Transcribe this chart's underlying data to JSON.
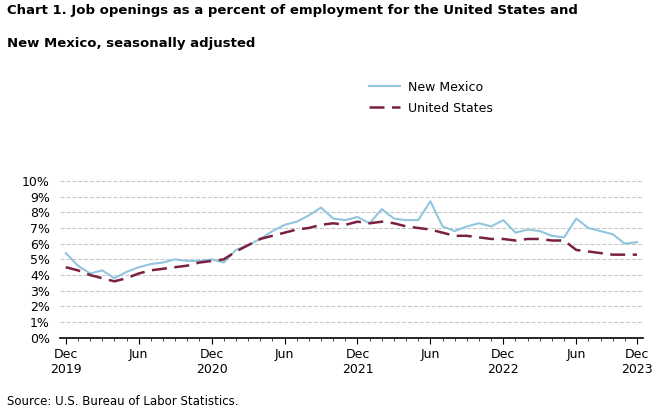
{
  "title_line1": "Chart 1. Job openings as a percent of employment for the United States and",
  "title_line2": "New Mexico, seasonally adjusted",
  "source": "Source: U.S. Bureau of Labor Statistics.",
  "nm_label": "New Mexico",
  "us_label": "United States",
  "nm_color": "#92C5DE",
  "us_color": "#7B2040",
  "nm_linewidth": 1.5,
  "us_linewidth": 1.8,
  "ylim": [
    0,
    0.105
  ],
  "yticks": [
    0.0,
    0.01,
    0.02,
    0.03,
    0.04,
    0.05,
    0.06,
    0.07,
    0.08,
    0.09,
    0.1
  ],
  "ytick_labels": [
    "0%",
    "1%",
    "2%",
    "3%",
    "4%",
    "5%",
    "6%",
    "7%",
    "8%",
    "9%",
    "10%"
  ],
  "background_color": "#ffffff",
  "new_mexico": [
    0.054,
    0.046,
    0.041,
    0.043,
    0.038,
    0.042,
    0.045,
    0.047,
    0.048,
    0.05,
    0.049,
    0.049,
    0.05,
    0.048,
    0.056,
    0.059,
    0.063,
    0.068,
    0.072,
    0.074,
    0.078,
    0.083,
    0.076,
    0.075,
    0.077,
    0.073,
    0.082,
    0.076,
    0.075,
    0.075,
    0.087,
    0.071,
    0.068,
    0.071,
    0.073,
    0.071,
    0.075,
    0.067,
    0.069,
    0.068,
    0.065,
    0.064,
    0.076,
    0.07,
    0.068,
    0.066,
    0.06,
    0.061
  ],
  "united_states": [
    0.045,
    0.043,
    0.04,
    0.038,
    0.036,
    0.038,
    0.041,
    0.043,
    0.044,
    0.045,
    0.046,
    0.048,
    0.049,
    0.05,
    0.055,
    0.059,
    0.063,
    0.065,
    0.067,
    0.069,
    0.07,
    0.072,
    0.073,
    0.072,
    0.074,
    0.073,
    0.074,
    0.073,
    0.071,
    0.07,
    0.069,
    0.067,
    0.065,
    0.065,
    0.064,
    0.063,
    0.063,
    0.062,
    0.063,
    0.063,
    0.062,
    0.062,
    0.056,
    0.055,
    0.054,
    0.053,
    0.053,
    0.053
  ],
  "x_tick_positions": [
    0,
    6,
    12,
    18,
    24,
    30,
    36,
    42,
    47
  ],
  "x_tick_labels": [
    "Dec\n2019",
    "Jun",
    "Dec\n2020",
    "Jun",
    "Dec\n2021",
    "Jun",
    "Dec\n2022",
    "Jun",
    "Dec\n2023"
  ]
}
